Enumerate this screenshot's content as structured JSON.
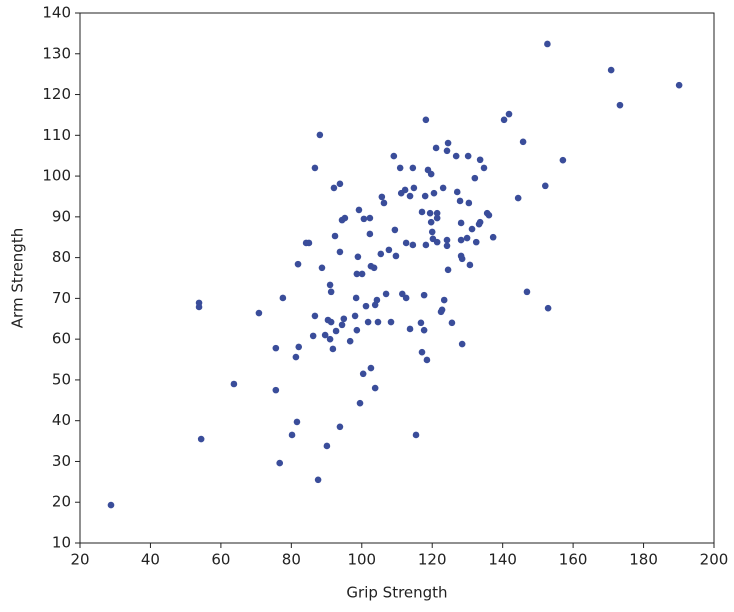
{
  "chart_data": {
    "type": "scatter",
    "x_label": "Grip Strength",
    "y_label": "Arm Strength",
    "color": "#3a4d9a",
    "grid": false,
    "xlim": [
      20,
      200
    ],
    "xticks": [
      20,
      40,
      60,
      80,
      100,
      120,
      140,
      160,
      180,
      200
    ],
    "ylim": [
      10,
      140
    ],
    "yticks": [
      10,
      20,
      30,
      40,
      50,
      60,
      70,
      80,
      90,
      100,
      110,
      120,
      130,
      140
    ],
    "x": [
      28.8,
      53.8,
      53.8,
      54.4,
      63.7,
      70.8,
      75.6,
      75.6,
      76.7,
      77.6,
      80.2,
      81.6,
      81.3,
      82.1,
      81.9,
      84.2,
      85.0,
      86.7,
      86.7,
      86.2,
      87.6,
      88.1,
      88.7,
      89.6,
      90.1,
      90.4,
      91.3,
      91.0,
      91.3,
      91.0,
      91.8,
      92.1,
      92.4,
      92.7,
      93.8,
      94.4,
      93.8,
      94.4,
      93.8,
      95.2,
      94.9,
      96.7,
      98.1,
      98.4,
      98.6,
      98.6,
      98.9,
      99.2,
      99.5,
      100.4,
      100.1,
      100.6,
      101.2,
      101.8,
      102.3,
      102.3,
      102.6,
      102.6,
      103.8,
      103.5,
      103.8,
      104.3,
      104.6,
      105.7,
      105.4,
      106.3,
      106.9,
      107.7,
      108.3,
      109.1,
      109.4,
      109.7,
      110.9,
      111.2,
      111.5,
      112.3,
      112.6,
      112.6,
      113.7,
      113.7,
      114.5,
      114.5,
      114.8,
      115.4,
      116.8,
      117.1,
      117.1,
      118.0,
      117.7,
      117.7,
      118.2,
      118.2,
      118.5,
      118.8,
      119.4,
      119.7,
      119.7,
      120.0,
      120.2,
      120.5,
      121.1,
      121.4,
      121.4,
      121.4,
      122.5,
      122.8,
      123.1,
      123.4,
      124.2,
      124.5,
      124.2,
      124.2,
      124.5,
      125.6,
      126.8,
      127.1,
      127.9,
      128.2,
      128.2,
      128.2,
      128.5,
      128.5,
      129.9,
      130.2,
      130.4,
      130.7,
      131.3,
      132.1,
      132.5,
      133.3,
      133.6,
      133.6,
      134.7,
      135.6,
      136.1,
      137.3,
      140.4,
      141.8,
      144.4,
      145.8,
      146.9,
      152.1,
      152.7,
      152.9,
      157.1,
      170.8,
      173.3,
      190.1
    ],
    "y": [
      19.3,
      68.9,
      67.9,
      35.5,
      49.0,
      66.4,
      57.8,
      47.5,
      29.6,
      70.1,
      36.5,
      39.7,
      55.6,
      58.1,
      78.4,
      83.6,
      83.6,
      102.0,
      65.7,
      60.8,
      25.5,
      110.1,
      77.5,
      61.0,
      33.8,
      64.7,
      64.2,
      73.3,
      71.6,
      60.0,
      57.6,
      97.1,
      85.3,
      62.0,
      98.1,
      89.2,
      81.4,
      63.5,
      38.5,
      89.7,
      65.0,
      59.5,
      65.7,
      70.1,
      76.0,
      62.2,
      80.2,
      91.7,
      44.3,
      51.5,
      76.0,
      89.5,
      68.1,
      64.2,
      89.7,
      85.8,
      77.9,
      52.9,
      48.0,
      77.5,
      68.4,
      69.6,
      64.2,
      94.9,
      80.9,
      93.4,
      71.1,
      81.9,
      64.2,
      104.9,
      86.8,
      80.4,
      102.0,
      95.8,
      71.1,
      96.6,
      70.1,
      83.6,
      62.5,
      95.1,
      102.0,
      83.1,
      97.1,
      36.5,
      64.0,
      56.8,
      91.2,
      95.1,
      70.8,
      62.2,
      113.8,
      83.1,
      54.9,
      101.5,
      90.9,
      100.5,
      88.7,
      86.3,
      84.6,
      95.8,
      106.9,
      90.9,
      89.7,
      83.8,
      66.7,
      67.2,
      97.1,
      69.6,
      106.2,
      108.1,
      84.3,
      82.9,
      77.0,
      64.0,
      104.9,
      96.1,
      93.9,
      84.3,
      88.5,
      80.4,
      79.7,
      58.8,
      84.8,
      104.9,
      93.4,
      78.2,
      87.0,
      99.5,
      83.8,
      88.2,
      104.0,
      88.7,
      102.0,
      90.9,
      90.4,
      85.0,
      113.8,
      115.2,
      94.6,
      108.4,
      71.6,
      97.6,
      132.4,
      67.6,
      103.9,
      126.0,
      117.4,
      122.3
    ]
  }
}
